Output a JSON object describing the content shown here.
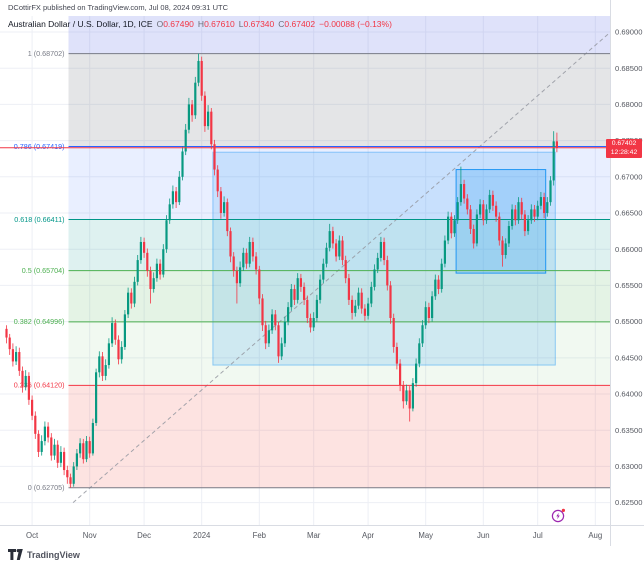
{
  "header": {
    "publisher_line": "DCottirFX published on TradingView.com, Jul 08, 2024 09:31 UTC"
  },
  "legend": {
    "title": "Australian Dollar / U.S. Dollar, 1D, ICE",
    "o_label": "O",
    "o": "0.67490",
    "h_label": "H",
    "h": "0.67610",
    "l_label": "L",
    "l": "0.67340",
    "c_label": "C",
    "c": "0.67402",
    "change": "−0.00088 (−0.13%)"
  },
  "price_label": {
    "value": "0.67402",
    "countdown": "12:28:42",
    "bg": "#f23645"
  },
  "footer": {
    "logo_text": "TradingView"
  },
  "colors": {
    "up": "#089981",
    "down": "#f23645",
    "grid": "#edeff5",
    "axis_text": "#555860",
    "trendline": "#9598a1",
    "rect_fill": "rgba(33,150,243,0.16)",
    "rect_stroke": "rgba(33,150,243,0.45)",
    "rect2_fill": "rgba(33,150,243,0.22)",
    "rect2_stroke": "#2196f3",
    "boost_purple": "#9c27b0"
  },
  "chart_data": {
    "type": "candlestick",
    "title": "Australian Dollar / U.S. Dollar",
    "timeframe": "1D",
    "exchange": "ICE",
    "last_price": 0.67402,
    "y_axis": {
      "price_at_top": 0.69221,
      "price_at_bottom": 0.62191,
      "ticks": [
        0.69,
        0.685,
        0.68,
        0.675,
        0.67,
        0.665,
        0.66,
        0.655,
        0.65,
        0.645,
        0.64,
        0.635,
        0.63,
        0.625
      ]
    },
    "x_axis": {
      "months": [
        {
          "label": "Oct",
          "i": 8
        },
        {
          "label": "Nov",
          "i": 26
        },
        {
          "label": "Dec",
          "i": 43
        },
        {
          "label": "2024",
          "i": 61
        },
        {
          "label": "Feb",
          "i": 79
        },
        {
          "label": "Mar",
          "i": 96
        },
        {
          "label": "Apr",
          "i": 113
        },
        {
          "label": "May",
          "i": 131
        },
        {
          "label": "Jun",
          "i": 149
        },
        {
          "label": "Jul",
          "i": 166
        },
        {
          "label": "Aug",
          "i": 184
        }
      ]
    },
    "fib_start_index": 20,
    "fib_levels": [
      {
        "r": "1",
        "price": 0.68702,
        "label": "1 (0.68702)",
        "color": "#787b86"
      },
      {
        "r": "0.786",
        "price": 0.67419,
        "label": "0.786 (0.67419)",
        "color": "#2962ff"
      },
      {
        "r": "0.618",
        "price": 0.66411,
        "label": "0.618 (0.66411)",
        "color": "#009688"
      },
      {
        "r": "0.5",
        "price": 0.65704,
        "label": "0.5 (0.65704)",
        "color": "#4caf50"
      },
      {
        "r": "0.382",
        "price": 0.64996,
        "label": "0.382 (0.64996)",
        "color": "#4caf50"
      },
      {
        "r": "0.236",
        "price": 0.6412,
        "label": "0.236 (0.64120)",
        "color": "#f23645"
      },
      {
        "r": "0",
        "price": 0.62705,
        "label": "0 (0.62705)",
        "color": "#787b86"
      }
    ],
    "fib_bands": [
      {
        "top": 0.69221,
        "bottom": 0.68702,
        "fill": "rgba(76,96,230,0.18)"
      },
      {
        "top": 0.68702,
        "bottom": 0.67419,
        "fill": "rgba(120,123,134,0.20)"
      },
      {
        "top": 0.67419,
        "bottom": 0.66411,
        "fill": "rgba(41,98,255,0.10)"
      },
      {
        "top": 0.66411,
        "bottom": 0.65704,
        "fill": "rgba(0,150,136,0.13)"
      },
      {
        "top": 0.65704,
        "bottom": 0.64996,
        "fill": "rgba(76,175,80,0.15)"
      },
      {
        "top": 0.64996,
        "bottom": 0.6412,
        "fill": "rgba(76,175,80,0.08)"
      },
      {
        "top": 0.6412,
        "bottom": 0.62705,
        "fill": "rgba(244,67,54,0.15)"
      }
    ],
    "rectangles": [
      {
        "i1": 64.5,
        "i2": 171.5,
        "top": 0.6734,
        "bottom": 0.644,
        "kind": "outer"
      },
      {
        "i1": 140.5,
        "i2": 168.5,
        "top": 0.671,
        "bottom": 0.6567,
        "kind": "inner"
      }
    ],
    "trendline": {
      "i1": 20.8,
      "p1": 0.625,
      "i2": 189,
      "p2": 0.6901
    },
    "candles": [
      [
        0.649,
        0.6495,
        0.647,
        0.6478
      ],
      [
        0.6478,
        0.6483,
        0.6454,
        0.6462
      ],
      [
        0.6462,
        0.647,
        0.6438,
        0.6445
      ],
      [
        0.6445,
        0.6466,
        0.644,
        0.6458
      ],
      [
        0.6458,
        0.6464,
        0.6425,
        0.6432
      ],
      [
        0.6432,
        0.6438,
        0.6402,
        0.641
      ],
      [
        0.641,
        0.6433,
        0.6405,
        0.6425
      ],
      [
        0.6425,
        0.643,
        0.6385,
        0.6392
      ],
      [
        0.6392,
        0.6398,
        0.6364,
        0.637
      ],
      [
        0.637,
        0.6376,
        0.6338,
        0.6345
      ],
      [
        0.6345,
        0.635,
        0.6313,
        0.632
      ],
      [
        0.632,
        0.6343,
        0.6315,
        0.6335
      ],
      [
        0.6335,
        0.6362,
        0.6329,
        0.6355
      ],
      [
        0.6355,
        0.6361,
        0.6333,
        0.634
      ],
      [
        0.634,
        0.6346,
        0.6308,
        0.6315
      ],
      [
        0.6315,
        0.6338,
        0.6309,
        0.633
      ],
      [
        0.633,
        0.6336,
        0.6298,
        0.6305
      ],
      [
        0.6305,
        0.6328,
        0.6299,
        0.632
      ],
      [
        0.632,
        0.6326,
        0.6288,
        0.6295
      ],
      [
        0.6295,
        0.6301,
        0.6276,
        0.6285
      ],
      [
        0.6285,
        0.629,
        0.62705,
        0.6276
      ],
      [
        0.6276,
        0.6306,
        0.6272,
        0.63
      ],
      [
        0.63,
        0.6324,
        0.6295,
        0.6318
      ],
      [
        0.6318,
        0.6339,
        0.6312,
        0.6332
      ],
      [
        0.6332,
        0.6338,
        0.6304,
        0.631
      ],
      [
        0.631,
        0.6342,
        0.6306,
        0.6335
      ],
      [
        0.6335,
        0.6341,
        0.6312,
        0.6318
      ],
      [
        0.6318,
        0.6366,
        0.6315,
        0.636
      ],
      [
        0.636,
        0.6435,
        0.6356,
        0.643
      ],
      [
        0.643,
        0.6459,
        0.6423,
        0.6452
      ],
      [
        0.6452,
        0.6458,
        0.6418,
        0.6425
      ],
      [
        0.6425,
        0.6448,
        0.6419,
        0.644
      ],
      [
        0.644,
        0.6477,
        0.6435,
        0.647
      ],
      [
        0.647,
        0.6506,
        0.6465,
        0.6498
      ],
      [
        0.6498,
        0.6503,
        0.6468,
        0.6475
      ],
      [
        0.6475,
        0.6481,
        0.6441,
        0.6448
      ],
      [
        0.6448,
        0.6473,
        0.6442,
        0.6465
      ],
      [
        0.6465,
        0.6516,
        0.6461,
        0.651
      ],
      [
        0.651,
        0.6547,
        0.6505,
        0.654
      ],
      [
        0.654,
        0.6546,
        0.6518,
        0.6525
      ],
      [
        0.6525,
        0.6562,
        0.652,
        0.6555
      ],
      [
        0.6555,
        0.6592,
        0.655,
        0.6585
      ],
      [
        0.6585,
        0.6617,
        0.658,
        0.661
      ],
      [
        0.661,
        0.6616,
        0.6588,
        0.6595
      ],
      [
        0.6595,
        0.6601,
        0.6562,
        0.657
      ],
      [
        0.657,
        0.6576,
        0.6525,
        0.6545
      ],
      [
        0.6545,
        0.6568,
        0.654,
        0.656
      ],
      [
        0.656,
        0.6587,
        0.6555,
        0.658
      ],
      [
        0.658,
        0.6586,
        0.6558,
        0.6565
      ],
      [
        0.6565,
        0.6607,
        0.6561,
        0.66
      ],
      [
        0.66,
        0.6647,
        0.6595,
        0.664
      ],
      [
        0.664,
        0.667,
        0.6635,
        0.6662
      ],
      [
        0.6662,
        0.6688,
        0.6656,
        0.668
      ],
      [
        0.668,
        0.6686,
        0.6657,
        0.6665
      ],
      [
        0.6665,
        0.6708,
        0.6661,
        0.67
      ],
      [
        0.67,
        0.6742,
        0.6695,
        0.6735
      ],
      [
        0.6735,
        0.6773,
        0.673,
        0.6765
      ],
      [
        0.6765,
        0.6809,
        0.676,
        0.68
      ],
      [
        0.68,
        0.6806,
        0.6776,
        0.6785
      ],
      [
        0.6785,
        0.6838,
        0.678,
        0.683
      ],
      [
        0.683,
        0.68702,
        0.6825,
        0.686
      ],
      [
        0.686,
        0.6866,
        0.6805,
        0.6812
      ],
      [
        0.6812,
        0.6818,
        0.6762,
        0.677
      ],
      [
        0.677,
        0.6799,
        0.6765,
        0.679
      ],
      [
        0.679,
        0.6795,
        0.6738,
        0.6745
      ],
      [
        0.6745,
        0.6751,
        0.6702,
        0.671
      ],
      [
        0.671,
        0.6716,
        0.6672,
        0.668
      ],
      [
        0.668,
        0.6686,
        0.6642,
        0.665
      ],
      [
        0.665,
        0.6673,
        0.6645,
        0.6665
      ],
      [
        0.6665,
        0.667,
        0.6618,
        0.6625
      ],
      [
        0.6625,
        0.663,
        0.6582,
        0.659
      ],
      [
        0.659,
        0.6596,
        0.6562,
        0.657
      ],
      [
        0.657,
        0.6576,
        0.6525,
        0.6553
      ],
      [
        0.6553,
        0.6583,
        0.6548,
        0.6575
      ],
      [
        0.6575,
        0.6602,
        0.657,
        0.6595
      ],
      [
        0.6595,
        0.6601,
        0.6573,
        0.658
      ],
      [
        0.658,
        0.6617,
        0.6575,
        0.661
      ],
      [
        0.661,
        0.6616,
        0.6583,
        0.659
      ],
      [
        0.659,
        0.6596,
        0.6565,
        0.6572
      ],
      [
        0.6572,
        0.6577,
        0.6524,
        0.6532
      ],
      [
        0.6532,
        0.6538,
        0.6487,
        0.6495
      ],
      [
        0.6495,
        0.6501,
        0.6462,
        0.647
      ],
      [
        0.647,
        0.6496,
        0.6465,
        0.6488
      ],
      [
        0.6488,
        0.6517,
        0.6483,
        0.651
      ],
      [
        0.651,
        0.6516,
        0.6488,
        0.6495
      ],
      [
        0.6495,
        0.65,
        0.6443,
        0.6452
      ],
      [
        0.6452,
        0.6478,
        0.6447,
        0.647
      ],
      [
        0.647,
        0.6507,
        0.6465,
        0.65
      ],
      [
        0.65,
        0.6527,
        0.6495,
        0.652
      ],
      [
        0.652,
        0.6552,
        0.6515,
        0.6545
      ],
      [
        0.6545,
        0.6551,
        0.6523,
        0.653
      ],
      [
        0.653,
        0.6567,
        0.6525,
        0.656
      ],
      [
        0.656,
        0.6566,
        0.6541,
        0.6548
      ],
      [
        0.6548,
        0.6554,
        0.6523,
        0.653
      ],
      [
        0.653,
        0.6536,
        0.6498,
        0.6505
      ],
      [
        0.6505,
        0.6511,
        0.6485,
        0.6492
      ],
      [
        0.6492,
        0.6513,
        0.6487,
        0.6505
      ],
      [
        0.6505,
        0.6537,
        0.65,
        0.653
      ],
      [
        0.653,
        0.6565,
        0.6525,
        0.6558
      ],
      [
        0.6558,
        0.6587,
        0.6553,
        0.658
      ],
      [
        0.658,
        0.6609,
        0.6575,
        0.6602
      ],
      [
        0.6602,
        0.6635,
        0.6597,
        0.6625
      ],
      [
        0.6625,
        0.6631,
        0.6601,
        0.6608
      ],
      [
        0.6608,
        0.6614,
        0.6583,
        0.659
      ],
      [
        0.659,
        0.6619,
        0.6585,
        0.6612
      ],
      [
        0.6612,
        0.6618,
        0.6578,
        0.6585
      ],
      [
        0.6585,
        0.6591,
        0.6553,
        0.656
      ],
      [
        0.656,
        0.6566,
        0.6523,
        0.653
      ],
      [
        0.653,
        0.6536,
        0.6503,
        0.6512
      ],
      [
        0.6512,
        0.653,
        0.6507,
        0.6522
      ],
      [
        0.6522,
        0.6547,
        0.6517,
        0.654
      ],
      [
        0.654,
        0.6546,
        0.6511,
        0.6518
      ],
      [
        0.6518,
        0.6524,
        0.6501,
        0.6508
      ],
      [
        0.6508,
        0.6533,
        0.6503,
        0.6525
      ],
      [
        0.6525,
        0.6555,
        0.652,
        0.6548
      ],
      [
        0.6548,
        0.6579,
        0.6543,
        0.6572
      ],
      [
        0.6572,
        0.6595,
        0.6567,
        0.6588
      ],
      [
        0.6588,
        0.6617,
        0.6583,
        0.661
      ],
      [
        0.661,
        0.6616,
        0.6578,
        0.6585
      ],
      [
        0.6585,
        0.6591,
        0.6543,
        0.655
      ],
      [
        0.655,
        0.6556,
        0.6497,
        0.6505
      ],
      [
        0.6505,
        0.6511,
        0.6457,
        0.6465
      ],
      [
        0.6465,
        0.6471,
        0.6434,
        0.6442
      ],
      [
        0.6442,
        0.6448,
        0.6404,
        0.6412
      ],
      [
        0.6412,
        0.6418,
        0.638,
        0.639
      ],
      [
        0.639,
        0.6413,
        0.6385,
        0.6405
      ],
      [
        0.6405,
        0.6411,
        0.6362,
        0.638
      ],
      [
        0.638,
        0.6422,
        0.6376,
        0.6415
      ],
      [
        0.6415,
        0.6449,
        0.641,
        0.6442
      ],
      [
        0.6442,
        0.6477,
        0.6437,
        0.647
      ],
      [
        0.647,
        0.6502,
        0.6465,
        0.6495
      ],
      [
        0.6495,
        0.6528,
        0.649,
        0.652
      ],
      [
        0.652,
        0.6526,
        0.6498,
        0.6505
      ],
      [
        0.6505,
        0.6542,
        0.65,
        0.6535
      ],
      [
        0.6535,
        0.6565,
        0.653,
        0.6558
      ],
      [
        0.6558,
        0.6564,
        0.6538,
        0.6545
      ],
      [
        0.6545,
        0.6587,
        0.654,
        0.658
      ],
      [
        0.658,
        0.6619,
        0.6575,
        0.6612
      ],
      [
        0.6612,
        0.6652,
        0.6607,
        0.6645
      ],
      [
        0.6645,
        0.6651,
        0.6615,
        0.6622
      ],
      [
        0.6622,
        0.6647,
        0.6617,
        0.664
      ],
      [
        0.664,
        0.6672,
        0.6635,
        0.6665
      ],
      [
        0.6665,
        0.6714,
        0.666,
        0.669
      ],
      [
        0.669,
        0.6696,
        0.6663,
        0.667
      ],
      [
        0.667,
        0.6676,
        0.6648,
        0.6655
      ],
      [
        0.6655,
        0.6661,
        0.6621,
        0.6628
      ],
      [
        0.6628,
        0.6634,
        0.6601,
        0.6608
      ],
      [
        0.6608,
        0.6655,
        0.6604,
        0.6648
      ],
      [
        0.6648,
        0.6669,
        0.6643,
        0.6662
      ],
      [
        0.6662,
        0.6668,
        0.6633,
        0.664
      ],
      [
        0.664,
        0.6662,
        0.6635,
        0.6655
      ],
      [
        0.6655,
        0.6682,
        0.665,
        0.6675
      ],
      [
        0.6675,
        0.6681,
        0.6653,
        0.666
      ],
      [
        0.666,
        0.6666,
        0.6638,
        0.6645
      ],
      [
        0.6645,
        0.6651,
        0.6605,
        0.6612
      ],
      [
        0.6612,
        0.6618,
        0.6576,
        0.6592
      ],
      [
        0.6592,
        0.6615,
        0.6587,
        0.6608
      ],
      [
        0.6608,
        0.6639,
        0.6603,
        0.6632
      ],
      [
        0.6632,
        0.6662,
        0.6627,
        0.6655
      ],
      [
        0.6655,
        0.6661,
        0.6633,
        0.664
      ],
      [
        0.664,
        0.6672,
        0.6635,
        0.6665
      ],
      [
        0.6665,
        0.6671,
        0.6641,
        0.6648
      ],
      [
        0.6648,
        0.6654,
        0.6618,
        0.6625
      ],
      [
        0.6625,
        0.6647,
        0.662,
        0.664
      ],
      [
        0.664,
        0.6662,
        0.6635,
        0.6655
      ],
      [
        0.6655,
        0.6661,
        0.6638,
        0.6645
      ],
      [
        0.6645,
        0.6667,
        0.664,
        0.666
      ],
      [
        0.666,
        0.6679,
        0.6655,
        0.6672
      ],
      [
        0.6672,
        0.6678,
        0.6643,
        0.665
      ],
      [
        0.665,
        0.6672,
        0.6645,
        0.6665
      ],
      [
        0.6665,
        0.6701,
        0.666,
        0.6695
      ],
      [
        0.6695,
        0.6763,
        0.6688,
        0.6749
      ],
      [
        0.6749,
        0.6761,
        0.6734,
        0.67402
      ]
    ]
  }
}
